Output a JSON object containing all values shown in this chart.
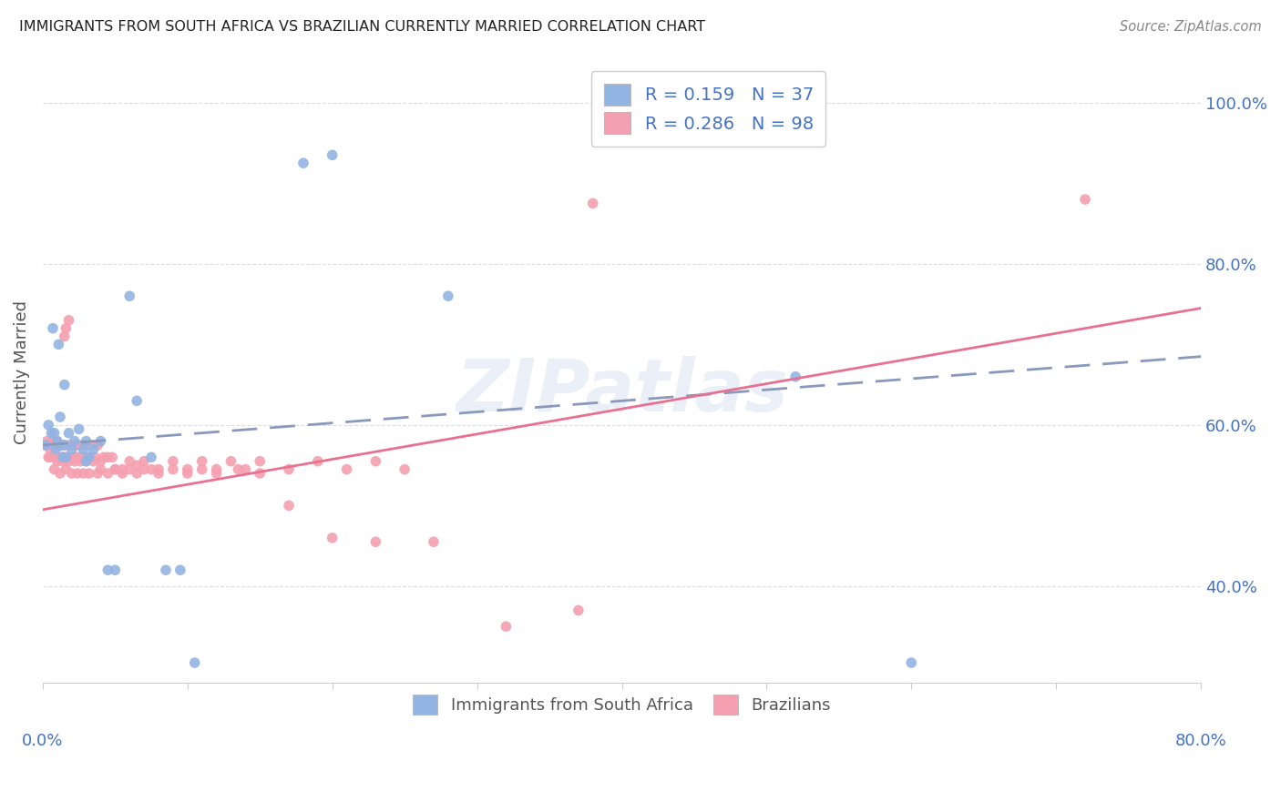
{
  "title": "IMMIGRANTS FROM SOUTH AFRICA VS BRAZILIAN CURRENTLY MARRIED CORRELATION CHART",
  "source": "Source: ZipAtlas.com",
  "ylabel": "Currently Married",
  "R_south_africa": 0.159,
  "N_south_africa": 37,
  "R_brazil": 0.286,
  "N_brazil": 98,
  "color_sa": "#92b4e3",
  "color_br": "#f4a0b0",
  "color_sa_line": "#5b7fc4",
  "color_br_line": "#e87090",
  "background": "#ffffff",
  "watermark": "ZIPatlas",
  "xmin": 0.0,
  "xmax": 0.8,
  "ymin": 0.28,
  "ymax": 1.05,
  "sa_line_x": [
    0.0,
    0.8
  ],
  "sa_line_y": [
    0.575,
    0.685
  ],
  "br_line_x": [
    0.0,
    0.8
  ],
  "br_line_y": [
    0.495,
    0.745
  ],
  "sa_points_x": [
    0.002,
    0.004,
    0.006,
    0.007,
    0.008,
    0.009,
    0.01,
    0.011,
    0.012,
    0.013,
    0.014,
    0.015,
    0.016,
    0.018,
    0.02,
    0.022,
    0.025,
    0.028,
    0.03,
    0.032,
    0.035,
    0.04,
    0.045,
    0.05,
    0.06,
    0.065,
    0.075,
    0.085,
    0.095,
    0.105,
    0.18,
    0.2,
    0.28,
    0.52,
    0.6,
    0.015,
    0.03
  ],
  "sa_points_y": [
    0.575,
    0.6,
    0.59,
    0.72,
    0.59,
    0.57,
    0.58,
    0.7,
    0.61,
    0.575,
    0.56,
    0.575,
    0.56,
    0.59,
    0.57,
    0.58,
    0.595,
    0.57,
    0.58,
    0.56,
    0.57,
    0.58,
    0.42,
    0.42,
    0.76,
    0.63,
    0.56,
    0.42,
    0.42,
    0.305,
    0.925,
    0.935,
    0.76,
    0.66,
    0.305,
    0.65,
    0.555
  ],
  "br_points_x": [
    0.002,
    0.003,
    0.004,
    0.005,
    0.006,
    0.007,
    0.008,
    0.009,
    0.01,
    0.01,
    0.011,
    0.012,
    0.013,
    0.013,
    0.014,
    0.015,
    0.015,
    0.016,
    0.017,
    0.018,
    0.018,
    0.019,
    0.02,
    0.021,
    0.022,
    0.023,
    0.024,
    0.025,
    0.026,
    0.027,
    0.028,
    0.029,
    0.03,
    0.032,
    0.034,
    0.036,
    0.038,
    0.04,
    0.042,
    0.045,
    0.048,
    0.05,
    0.055,
    0.06,
    0.065,
    0.07,
    0.075,
    0.08,
    0.09,
    0.1,
    0.11,
    0.12,
    0.13,
    0.14,
    0.15,
    0.17,
    0.19,
    0.21,
    0.23,
    0.25,
    0.005,
    0.008,
    0.01,
    0.012,
    0.014,
    0.016,
    0.018,
    0.02,
    0.022,
    0.024,
    0.026,
    0.028,
    0.03,
    0.032,
    0.035,
    0.038,
    0.04,
    0.045,
    0.05,
    0.055,
    0.06,
    0.065,
    0.07,
    0.08,
    0.09,
    0.1,
    0.11,
    0.12,
    0.135,
    0.15,
    0.17,
    0.2,
    0.23,
    0.27,
    0.32,
    0.37,
    0.38,
    0.72
  ],
  "br_points_y": [
    0.575,
    0.58,
    0.56,
    0.57,
    0.575,
    0.58,
    0.56,
    0.575,
    0.58,
    0.575,
    0.56,
    0.575,
    0.56,
    0.575,
    0.56,
    0.575,
    0.71,
    0.72,
    0.56,
    0.73,
    0.575,
    0.56,
    0.575,
    0.56,
    0.575,
    0.56,
    0.575,
    0.56,
    0.575,
    0.56,
    0.575,
    0.56,
    0.575,
    0.56,
    0.575,
    0.56,
    0.575,
    0.545,
    0.56,
    0.56,
    0.56,
    0.545,
    0.545,
    0.555,
    0.55,
    0.555,
    0.545,
    0.545,
    0.555,
    0.545,
    0.555,
    0.545,
    0.555,
    0.545,
    0.555,
    0.545,
    0.555,
    0.545,
    0.555,
    0.545,
    0.56,
    0.545,
    0.555,
    0.54,
    0.555,
    0.545,
    0.555,
    0.54,
    0.555,
    0.54,
    0.555,
    0.54,
    0.555,
    0.54,
    0.555,
    0.54,
    0.555,
    0.54,
    0.545,
    0.54,
    0.545,
    0.54,
    0.545,
    0.54,
    0.545,
    0.54,
    0.545,
    0.54,
    0.545,
    0.54,
    0.5,
    0.46,
    0.455,
    0.455,
    0.35,
    0.37,
    0.875,
    0.88
  ]
}
